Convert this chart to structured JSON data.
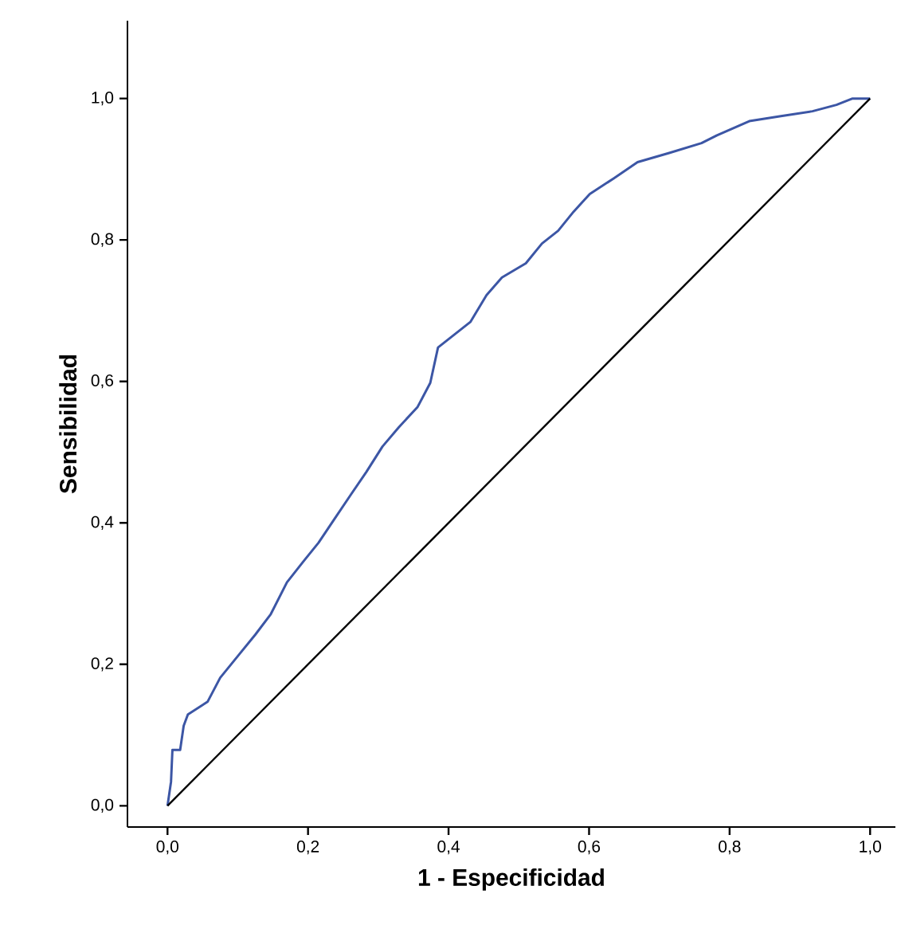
{
  "chart_data": {
    "type": "line",
    "xlabel": "1 - Especificidad",
    "ylabel": "Sensibilidad",
    "xlim": [
      -0.057,
      1.036
    ],
    "ylim": [
      -0.03,
      1.11
    ],
    "xticks": [
      {
        "value": 0,
        "label": "0,0"
      },
      {
        "value": 0.2,
        "label": "0,2"
      },
      {
        "value": 0.4,
        "label": "0,4"
      },
      {
        "value": 0.6,
        "label": "0,6"
      },
      {
        "value": 0.8,
        "label": "0,8"
      },
      {
        "value": 1,
        "label": "1,0"
      }
    ],
    "yticks": [
      {
        "value": 0,
        "label": "0,0"
      },
      {
        "value": 0.2,
        "label": "0,2"
      },
      {
        "value": 0.4,
        "label": "0,4"
      },
      {
        "value": 0.6,
        "label": "0,6"
      },
      {
        "value": 0.8,
        "label": "0,8"
      },
      {
        "value": 1,
        "label": "1,0"
      }
    ],
    "series": [
      {
        "color": "#3c56a5",
        "x": [
          0,
          0.005,
          0.007,
          0.018,
          0.023,
          0.029,
          0.057,
          0.075,
          0.102,
          0.125,
          0.147,
          0.17,
          0.193,
          0.215,
          0.238,
          0.261,
          0.283,
          0.306,
          0.329,
          0.356,
          0.374,
          0.385,
          0.408,
          0.431,
          0.454,
          0.476,
          0.51,
          0.533,
          0.556,
          0.578,
          0.601,
          0.635,
          0.669,
          0.714,
          0.76,
          0.782,
          0.828,
          0.873,
          0.918,
          0.952,
          0.975,
          1
        ],
        "values": [
          0,
          0.034,
          0.079,
          0.079,
          0.113,
          0.129,
          0.147,
          0.181,
          0.214,
          0.242,
          0.271,
          0.316,
          0.345,
          0.372,
          0.406,
          0.44,
          0.472,
          0.508,
          0.535,
          0.564,
          0.598,
          0.648,
          0.666,
          0.684,
          0.722,
          0.747,
          0.767,
          0.795,
          0.813,
          0.84,
          0.865,
          0.887,
          0.91,
          0.923,
          0.937,
          0.948,
          0.968,
          0.975,
          0.982,
          0.991,
          1,
          1
        ]
      },
      {
        "color": "#000000",
        "x": [
          0,
          1
        ],
        "values": [
          0,
          1
        ]
      }
    ]
  }
}
